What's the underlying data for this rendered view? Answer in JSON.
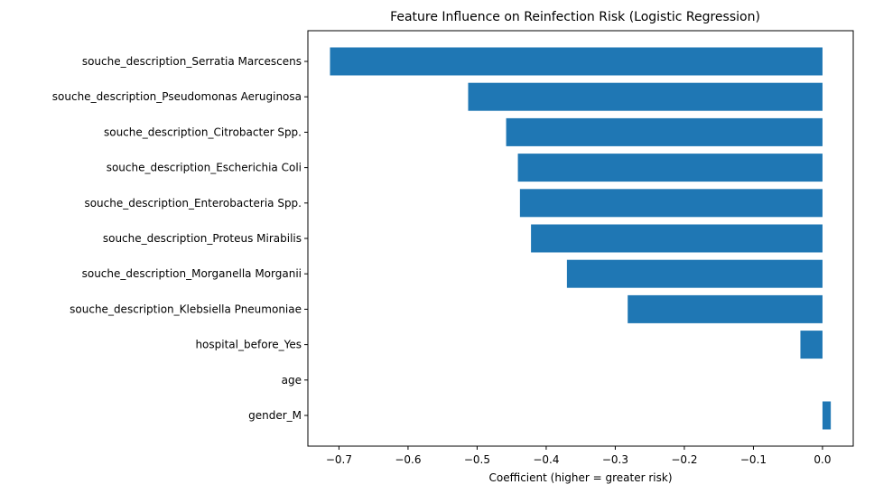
{
  "chart_data": {
    "type": "bar",
    "orientation": "horizontal",
    "title": "Feature Influence on Reinfection Risk (Logistic Regression)",
    "xlabel": "Coefficient (higher = greater risk)",
    "ylabel": "",
    "xlim": [
      -0.745,
      0.0445
    ],
    "xticks": [
      -0.7,
      -0.6,
      -0.5,
      -0.4,
      -0.3,
      -0.2,
      -0.1,
      0.0
    ],
    "xtick_labels": [
      "−0.7",
      "−0.6",
      "−0.5",
      "−0.4",
      "−0.3",
      "−0.2",
      "−0.1",
      "0.0"
    ],
    "grid": false,
    "bar_color": "#1f77b4",
    "categories": [
      "souche_description_Serratia Marcescens",
      "souche_description_Pseudomonas Aeruginosa",
      "souche_description_Citrobacter Spp.",
      "souche_description_Escherichia Coli",
      "souche_description_Enterobacteria Spp.",
      "souche_description_Proteus Mirabilis",
      "souche_description_Morganella Morganii",
      "souche_description_Klebsiella Pneumoniae",
      "hospital_before_Yes",
      "age",
      "gender_M"
    ],
    "values": [
      -0.713,
      -0.513,
      -0.458,
      -0.441,
      -0.438,
      -0.422,
      -0.37,
      -0.282,
      -0.032,
      0.0,
      0.012
    ]
  }
}
